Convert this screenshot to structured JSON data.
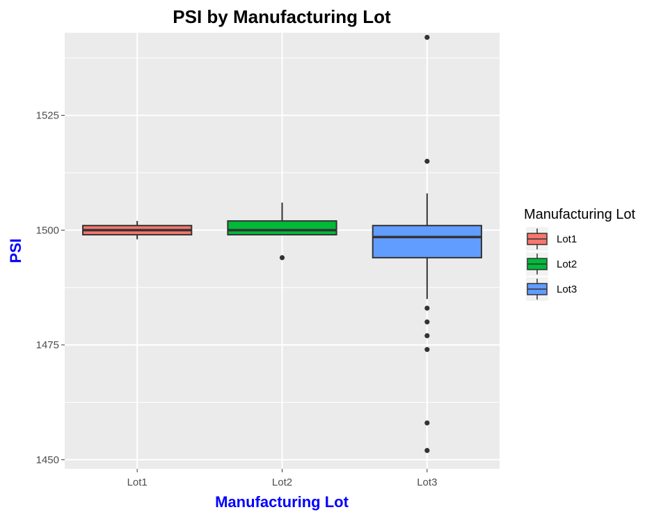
{
  "chart_data": {
    "type": "box",
    "title": "PSI by Manufacturing Lot",
    "xlabel": "Manufacturing Lot",
    "ylabel": "PSI",
    "ylim": [
      1448,
      1543
    ],
    "y_ticks": [
      1450,
      1475,
      1500,
      1525
    ],
    "categories": [
      "Lot1",
      "Lot2",
      "Lot3"
    ],
    "grid": true,
    "legend": {
      "title": "Manufacturing Lot",
      "position": "right"
    },
    "series": [
      {
        "name": "Lot1",
        "color": "#F8766D",
        "min": 1498,
        "q1": 1499,
        "median": 1500,
        "q3": 1501,
        "max": 1502,
        "outliers": []
      },
      {
        "name": "Lot2",
        "color": "#00BA38",
        "min": 1499,
        "q1": 1499,
        "median": 1500,
        "q3": 1502,
        "max": 1506,
        "outliers": [
          1494
        ]
      },
      {
        "name": "Lot3",
        "color": "#619CFF",
        "min": 1485,
        "q1": 1494,
        "median": 1498.5,
        "q3": 1501,
        "max": 1508,
        "outliers": [
          1542,
          1515,
          1483,
          1480,
          1477,
          1474,
          1458,
          1452
        ]
      }
    ],
    "colors": {
      "panel": "#EBEBEB",
      "grid": "#FFFFFF",
      "axis_title": "#0000FF"
    }
  }
}
